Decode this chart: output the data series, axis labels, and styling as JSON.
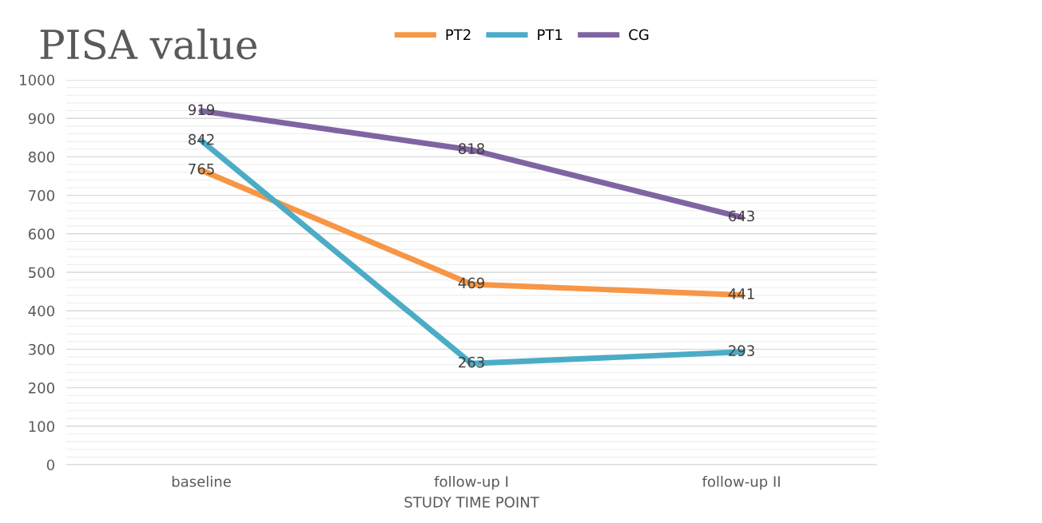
{
  "chart_data": {
    "type": "line",
    "title": "PISA value",
    "xlabel": "STUDY TIME POINT",
    "categories": [
      "baseline",
      "follow-up I",
      "follow-up II"
    ],
    "series": [
      {
        "name": "PT2",
        "color": "#f79646",
        "values": [
          765,
          469,
          441
        ]
      },
      {
        "name": "PT1",
        "color": "#4bacc6",
        "values": [
          842,
          263,
          293
        ]
      },
      {
        "name": "CG",
        "color": "#8064a2",
        "values": [
          919,
          818,
          643
        ]
      }
    ],
    "ylim": [
      0,
      1000
    ],
    "yticks": [
      0,
      100,
      200,
      300,
      400,
      500,
      600,
      700,
      800,
      900,
      1000
    ],
    "grid": "y",
    "legend": "top",
    "data_labels": true,
    "marker": "none",
    "line_style": "solid"
  }
}
